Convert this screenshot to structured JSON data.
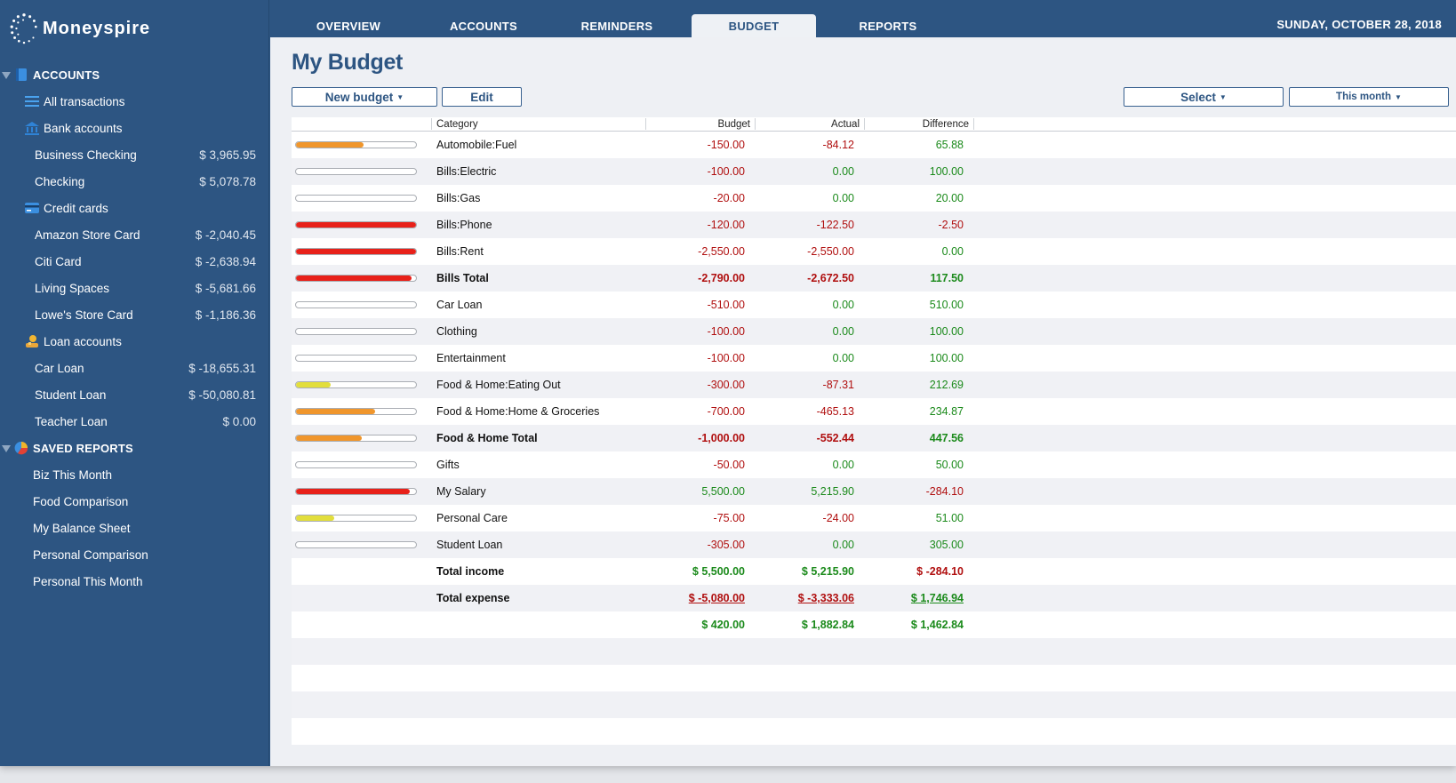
{
  "app": {
    "name": "Moneyspire"
  },
  "colors": {
    "sidebar": "#2d5582",
    "negative": "#b00f0f",
    "positive": "#1b8a1b",
    "bar_red": "#e8211a",
    "bar_orange": "#f0962c",
    "bar_yellow": "#e2de3c"
  },
  "tabs": [
    {
      "label": "OVERVIEW",
      "active": false
    },
    {
      "label": "ACCOUNTS",
      "active": false
    },
    {
      "label": "REMINDERS",
      "active": false
    },
    {
      "label": "BUDGET",
      "active": true
    },
    {
      "label": "REPORTS",
      "active": false
    }
  ],
  "date": "SUNDAY, OCTOBER 28, 2018",
  "sidebar": {
    "accounts_header": "ACCOUNTS",
    "all_transactions": "All transactions",
    "bank_accounts": "Bank accounts",
    "bank": [
      {
        "label": "Business Checking",
        "amount": "$ 3,965.95"
      },
      {
        "label": "Checking",
        "amount": "$ 5,078.78"
      }
    ],
    "credit_cards": "Credit cards",
    "credit": [
      {
        "label": "Amazon Store Card",
        "amount": "$ -2,040.45"
      },
      {
        "label": "Citi Card",
        "amount": "$ -2,638.94"
      },
      {
        "label": "Living Spaces",
        "amount": "$ -5,681.66"
      },
      {
        "label": "Lowe's Store Card",
        "amount": "$ -1,186.36"
      }
    ],
    "loan_accounts": "Loan accounts",
    "loans": [
      {
        "label": "Car Loan",
        "amount": "$ -18,655.31"
      },
      {
        "label": "Student Loan",
        "amount": "$ -50,080.81"
      },
      {
        "label": "Teacher Loan",
        "amount": "$ 0.00"
      }
    ],
    "saved_reports_header": "SAVED REPORTS",
    "reports": [
      "Biz This Month",
      "Food Comparison",
      "My Balance Sheet",
      "Personal Comparison",
      "Personal This Month"
    ]
  },
  "main": {
    "title": "My Budget",
    "new_budget_label": "New budget",
    "edit_label": "Edit",
    "select_label": "Select",
    "period_label": "This month"
  },
  "table": {
    "headers": {
      "category": "Category",
      "budget": "Budget",
      "actual": "Actual",
      "difference": "Difference"
    },
    "rows": [
      {
        "category": "Automobile:Fuel",
        "budget": "-150.00",
        "actual": "-84.12",
        "difference": "65.88",
        "progress": 0.56,
        "bar": "orange",
        "bold": false,
        "b": "neg",
        "a": "neg",
        "d": "pos"
      },
      {
        "category": "Bills:Electric",
        "budget": "-100.00",
        "actual": "0.00",
        "difference": "100.00",
        "progress": 0,
        "bar": "none",
        "bold": false,
        "b": "neg",
        "a": "pos",
        "d": "pos"
      },
      {
        "category": "Bills:Gas",
        "budget": "-20.00",
        "actual": "0.00",
        "difference": "20.00",
        "progress": 0,
        "bar": "none",
        "bold": false,
        "b": "neg",
        "a": "pos",
        "d": "pos"
      },
      {
        "category": "Bills:Phone",
        "budget": "-120.00",
        "actual": "-122.50",
        "difference": "-2.50",
        "progress": 1.0,
        "bar": "red",
        "bold": false,
        "b": "neg",
        "a": "neg",
        "d": "neg"
      },
      {
        "category": "Bills:Rent",
        "budget": "-2,550.00",
        "actual": "-2,550.00",
        "difference": "0.00",
        "progress": 1.0,
        "bar": "red",
        "bold": false,
        "b": "neg",
        "a": "neg",
        "d": "pos"
      },
      {
        "category": "Bills Total",
        "budget": "-2,790.00",
        "actual": "-2,672.50",
        "difference": "117.50",
        "progress": 0.96,
        "bar": "red",
        "bold": true,
        "b": "neg",
        "a": "neg",
        "d": "pos"
      },
      {
        "category": "Car Loan",
        "budget": "-510.00",
        "actual": "0.00",
        "difference": "510.00",
        "progress": 0,
        "bar": "none",
        "bold": false,
        "b": "neg",
        "a": "pos",
        "d": "pos"
      },
      {
        "category": "Clothing",
        "budget": "-100.00",
        "actual": "0.00",
        "difference": "100.00",
        "progress": 0,
        "bar": "none",
        "bold": false,
        "b": "neg",
        "a": "pos",
        "d": "pos"
      },
      {
        "category": "Entertainment",
        "budget": "-100.00",
        "actual": "0.00",
        "difference": "100.00",
        "progress": 0,
        "bar": "none",
        "bold": false,
        "b": "neg",
        "a": "pos",
        "d": "pos"
      },
      {
        "category": "Food & Home:Eating Out",
        "budget": "-300.00",
        "actual": "-87.31",
        "difference": "212.69",
        "progress": 0.29,
        "bar": "yellow",
        "bold": false,
        "b": "neg",
        "a": "neg",
        "d": "pos"
      },
      {
        "category": "Food & Home:Home & Groceries",
        "budget": "-700.00",
        "actual": "-465.13",
        "difference": "234.87",
        "progress": 0.66,
        "bar": "orange",
        "bold": false,
        "b": "neg",
        "a": "neg",
        "d": "pos"
      },
      {
        "category": "Food & Home Total",
        "budget": "-1,000.00",
        "actual": "-552.44",
        "difference": "447.56",
        "progress": 0.55,
        "bar": "orange",
        "bold": true,
        "b": "neg",
        "a": "neg",
        "d": "pos"
      },
      {
        "category": "Gifts",
        "budget": "-50.00",
        "actual": "0.00",
        "difference": "50.00",
        "progress": 0,
        "bar": "none",
        "bold": false,
        "b": "neg",
        "a": "pos",
        "d": "pos"
      },
      {
        "category": "My Salary",
        "budget": "5,500.00",
        "actual": "5,215.90",
        "difference": "-284.10",
        "progress": 0.95,
        "bar": "red",
        "bold": false,
        "b": "pos",
        "a": "pos",
        "d": "neg"
      },
      {
        "category": "Personal Care",
        "budget": "-75.00",
        "actual": "-24.00",
        "difference": "51.00",
        "progress": 0.32,
        "bar": "yellow",
        "bold": false,
        "b": "neg",
        "a": "neg",
        "d": "pos"
      },
      {
        "category": "Student Loan",
        "budget": "-305.00",
        "actual": "0.00",
        "difference": "305.00",
        "progress": 0,
        "bar": "none",
        "bold": false,
        "b": "neg",
        "a": "pos",
        "d": "pos"
      }
    ],
    "totals": [
      {
        "category": "Total income",
        "budget": "$ 5,500.00",
        "actual": "$ 5,215.90",
        "difference": "$ -284.10",
        "b": "pos",
        "a": "pos",
        "d": "neg",
        "underline": false
      },
      {
        "category": "Total expense",
        "budget": "$ -5,080.00",
        "actual": "$ -3,333.06",
        "difference": "$ 1,746.94",
        "b": "neg",
        "a": "neg",
        "d": "pos",
        "underline": true
      },
      {
        "category": "",
        "budget": "$ 420.00",
        "actual": "$ 1,882.84",
        "difference": "$ 1,462.84",
        "b": "pos",
        "a": "pos",
        "d": "pos",
        "underline": false
      }
    ]
  }
}
